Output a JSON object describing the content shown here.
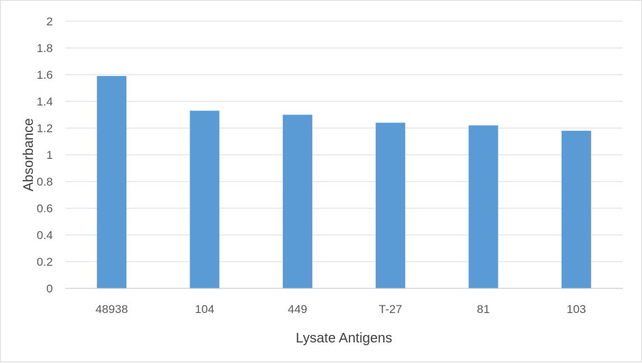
{
  "chart_data": {
    "type": "bar",
    "title": "",
    "xlabel": "Lysate Antigens",
    "ylabel": "Absorbance",
    "categories": [
      "48938",
      "104",
      "449",
      "T-27",
      "81",
      "103"
    ],
    "values": [
      1.59,
      1.33,
      1.3,
      1.24,
      1.22,
      1.18
    ],
    "ylim": [
      0,
      2
    ],
    "yticks": [
      "0",
      "0.2",
      "0.4",
      "0.6",
      "0.8",
      "1",
      "1.2",
      "1.4",
      "1.6",
      "1.8",
      "2"
    ],
    "grid": true,
    "legend": "none",
    "colors": {
      "bar": "#5b9bd5",
      "grid": "#d9d9d9",
      "axis_line": "#bfbfbf",
      "tick_text": "#595959",
      "axis_title": "#404040"
    }
  }
}
